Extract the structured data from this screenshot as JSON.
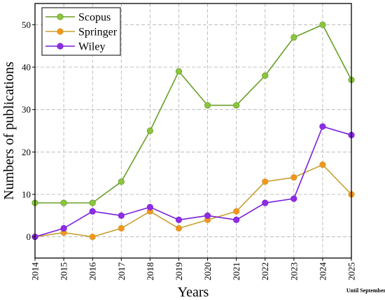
{
  "chart_data": {
    "type": "line",
    "x": [
      2014,
      2015,
      2016,
      2017,
      2018,
      2019,
      2020,
      2021,
      2022,
      2023,
      2024,
      2025
    ],
    "x_tick_labels": [
      "2014",
      "2015",
      "2016",
      "2017",
      "2018",
      "2019",
      "2020",
      "2021",
      "2022",
      "2023",
      "2024",
      "2025"
    ],
    "y_ticks": [
      0,
      10,
      20,
      30,
      40,
      50
    ],
    "y_tick_labels": [
      "0",
      "10",
      "20",
      "30",
      "40",
      "50"
    ],
    "xlim": [
      2014,
      2025
    ],
    "ylim": [
      -5,
      55
    ],
    "xlabel": "Years",
    "ylabel": "Numbers of publications",
    "annotation": "Until September",
    "grid": true,
    "legend_position": "top-left",
    "series": [
      {
        "name": "Scopus",
        "color": "#6a9f2a",
        "marker_color": "#8cc63f",
        "values": [
          8,
          8,
          8,
          13,
          25,
          39,
          31,
          31,
          38,
          47,
          50,
          37
        ]
      },
      {
        "name": "Springer",
        "color": "#c8a030",
        "marker_color": "#f7941d",
        "values": [
          0,
          1,
          0,
          2,
          6,
          2,
          4,
          6,
          13,
          14,
          17,
          10
        ]
      },
      {
        "name": "Wiley",
        "color": "#7b1fd9",
        "marker_color": "#8e2de2",
        "values": [
          0,
          2,
          6,
          5,
          7,
          4,
          5,
          4,
          8,
          9,
          26,
          24
        ]
      }
    ]
  }
}
